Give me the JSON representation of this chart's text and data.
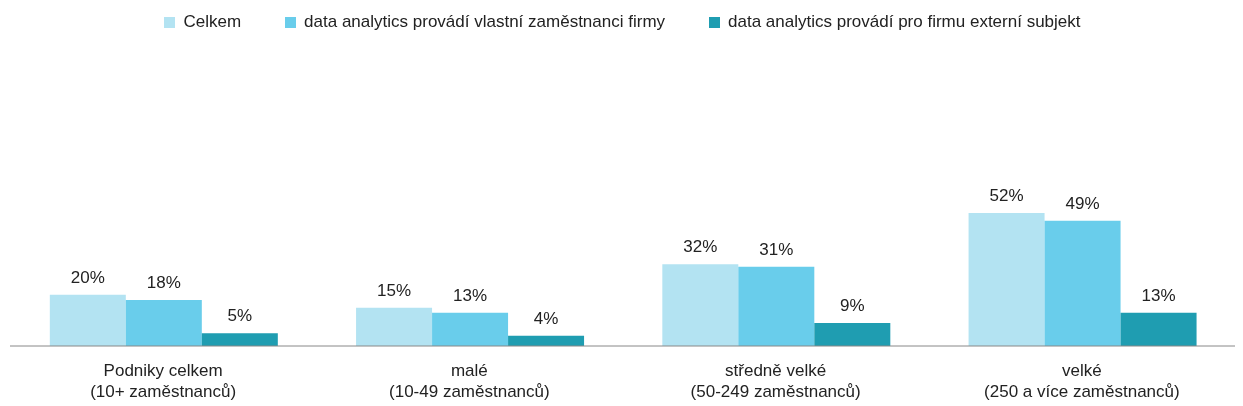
{
  "chart_data": {
    "type": "bar",
    "categories": [
      "Podniky celkem\n(10+ zaměstnanců)",
      "malé\n(10-49 zaměstnanců)",
      "středně velké\n(50-249 zaměstnanců)",
      "velké\n(250 a více zaměstnanců)"
    ],
    "series": [
      {
        "name": "Celkem",
        "color": "#b3e3f2",
        "values": [
          20,
          15,
          32,
          52
        ],
        "value_labels": [
          "20%",
          "15%",
          "32%",
          "52%"
        ]
      },
      {
        "name": "data analytics provádí vlastní zaměstnanci firmy",
        "color": "#69cdeb",
        "values": [
          18,
          13,
          31,
          49
        ],
        "value_labels": [
          "18%",
          "13%",
          "31%",
          "49%"
        ]
      },
      {
        "name": "data analytics provádí pro firmu externí subjekt",
        "color": "#1f9db1",
        "values": [
          5,
          4,
          9,
          13
        ],
        "value_labels": [
          "5%",
          "4%",
          "9%",
          "13%"
        ]
      }
    ],
    "legend": "top",
    "grid": false
  }
}
